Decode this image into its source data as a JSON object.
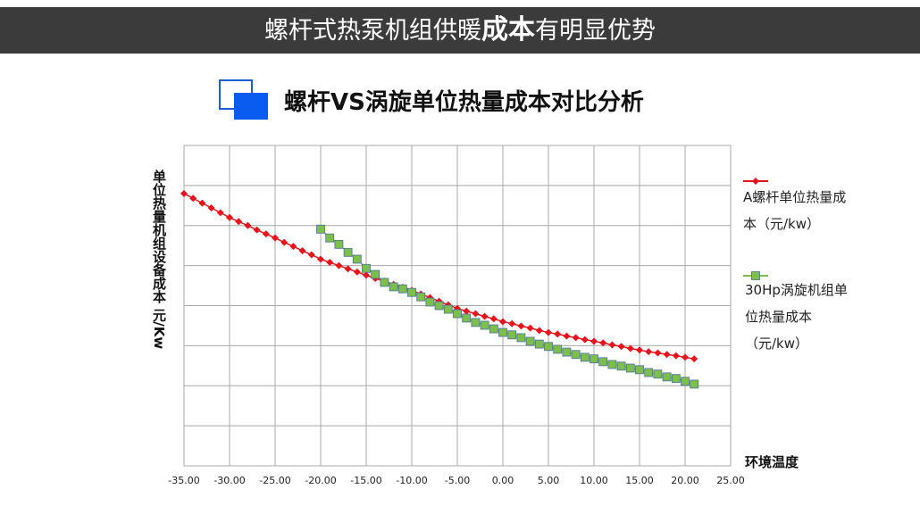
{
  "header": {
    "title_parts": [
      "螺杆式热泵机组供暖",
      "成本",
      "有明显优势"
    ]
  },
  "chart_data": {
    "type": "line",
    "title": "螺杆VS涡旋单位热量成本对比分析",
    "y_label": "单位热量机组设备成本 元/Kw",
    "x_label": "环境温度",
    "xlim": [
      -35,
      25
    ],
    "xticks": [
      {
        "value": -35,
        "label": "-35.00"
      },
      {
        "value": -30,
        "label": "-30.00"
      },
      {
        "value": -25,
        "label": "-25.00"
      },
      {
        "value": -20,
        "label": "-20.00"
      },
      {
        "value": -15,
        "label": "-15.00"
      },
      {
        "value": -10,
        "label": "-10.00"
      },
      {
        "value": -5,
        "label": "-5.00"
      },
      {
        "value": 0,
        "label": "0.00"
      },
      {
        "value": 5,
        "label": "5.00"
      },
      {
        "value": 10,
        "label": "10.00"
      },
      {
        "value": 15,
        "label": "15.00"
      },
      {
        "value": 20,
        "label": "20.00"
      },
      {
        "value": 25,
        "label": "25.00"
      }
    ],
    "ylim": [
      0,
      8
    ],
    "yticks": [
      0,
      1,
      2,
      3,
      4,
      5,
      6,
      7,
      8
    ],
    "ytick_labels": false,
    "grid": true,
    "legend": "right",
    "series": [
      {
        "name": "A螺杆单位热量成本（元/kw）",
        "color": "#e8141b",
        "marker": "diamond",
        "x": [
          -35,
          -34,
          -33,
          -32,
          -31,
          -30,
          -29,
          -28,
          -27,
          -26,
          -25,
          -24,
          -23,
          -22,
          -21,
          -20,
          -19,
          -18,
          -17,
          -16,
          -15,
          -14,
          -13,
          -12,
          -11,
          -10,
          -9,
          -8,
          -7,
          -6,
          -5,
          -4,
          -3,
          -2,
          -1,
          0,
          1,
          2,
          3,
          4,
          5,
          6,
          7,
          8,
          9,
          10,
          11,
          12,
          13,
          14,
          15,
          16,
          17,
          18,
          19,
          20,
          21
        ],
        "values": [
          6.8,
          6.68,
          6.56,
          6.44,
          6.32,
          6.2,
          6.1,
          6.0,
          5.89,
          5.79,
          5.69,
          5.58,
          5.48,
          5.37,
          5.27,
          5.16,
          5.08,
          5.0,
          4.92,
          4.84,
          4.76,
          4.68,
          4.61,
          4.53,
          4.46,
          4.38,
          4.29,
          4.2,
          4.11,
          4.02,
          3.93,
          3.86,
          3.8,
          3.73,
          3.67,
          3.6,
          3.55,
          3.49,
          3.44,
          3.38,
          3.33,
          3.29,
          3.24,
          3.2,
          3.15,
          3.11,
          3.07,
          3.02,
          2.98,
          2.93,
          2.89,
          2.85,
          2.82,
          2.78,
          2.75,
          2.71,
          2.67
        ]
      },
      {
        "name": "30Hp涡旋机组单位热量成本（元/kw）",
        "color": "#7cbf4a",
        "marker": "square",
        "x": [
          -20,
          -19,
          -18,
          -17,
          -16,
          -15,
          -14,
          -13,
          -12,
          -11,
          -10,
          -9,
          -8,
          -7,
          -6,
          -5,
          -4,
          -3,
          -2,
          -1,
          0,
          1,
          2,
          3,
          4,
          5,
          6,
          7,
          8,
          9,
          10,
          11,
          12,
          13,
          14,
          15,
          16,
          17,
          18,
          19,
          20,
          21
        ],
        "values": [
          5.91,
          5.69,
          5.53,
          5.33,
          5.16,
          4.93,
          4.78,
          4.58,
          4.47,
          4.42,
          4.33,
          4.22,
          4.09,
          4.0,
          3.91,
          3.8,
          3.69,
          3.58,
          3.51,
          3.42,
          3.33,
          3.27,
          3.2,
          3.11,
          3.04,
          2.98,
          2.91,
          2.84,
          2.78,
          2.71,
          2.67,
          2.6,
          2.53,
          2.49,
          2.44,
          2.4,
          2.33,
          2.29,
          2.22,
          2.18,
          2.11,
          2.04
        ]
      }
    ]
  }
}
